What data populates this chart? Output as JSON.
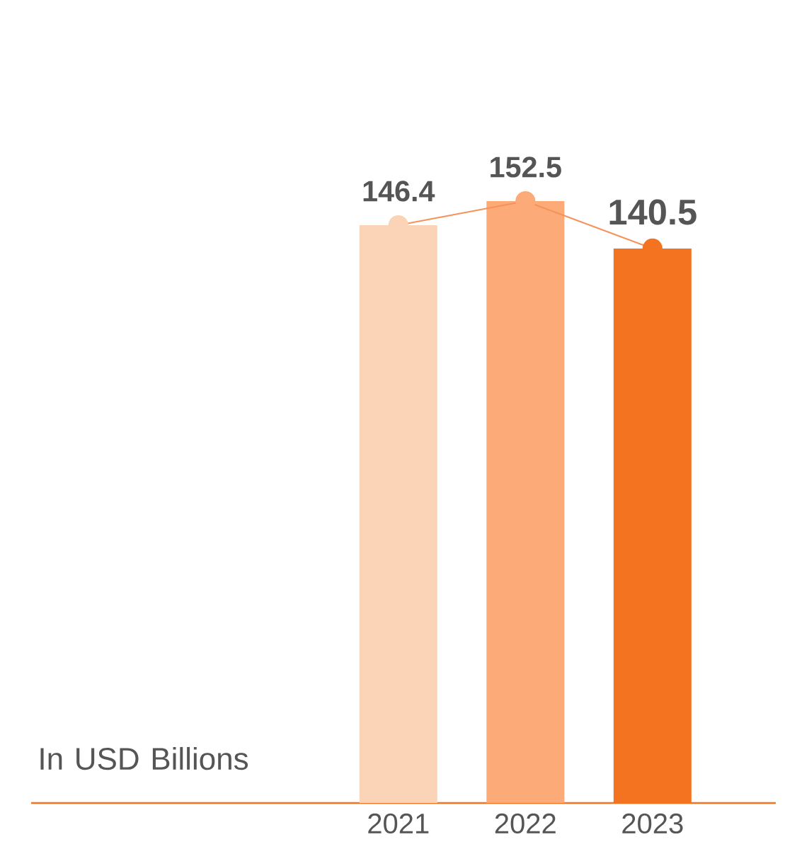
{
  "chart_data": {
    "type": "bar",
    "categories": [
      "2021",
      "2022",
      "2023"
    ],
    "ylabel": "In USD Billions",
    "tick_labels": "x",
    "grid": false,
    "series": [
      {
        "colors": [
          "#fbd3b6",
          "#fcaa78",
          "#f37321"
        ],
        "values": [
          146.4,
          152.5,
          140.5
        ]
      },
      {
        "type": "line",
        "color": "#f5935a",
        "colors": [
          "#fbd3b6",
          "#fcaa78",
          "#f37321"
        ],
        "marker": "circle",
        "data_labels": true,
        "values": [
          146.4,
          152.5,
          140.5
        ]
      }
    ]
  }
}
